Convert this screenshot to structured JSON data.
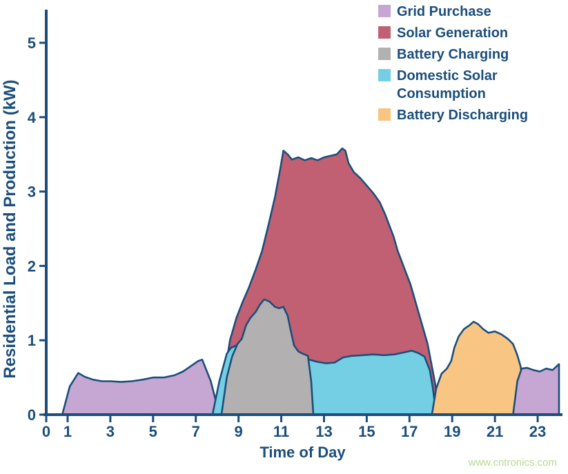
{
  "chart_data": {
    "type": "area",
    "title": "",
    "xlabel": "Time of Day",
    "ylabel": "Residential Load and Production (kW)",
    "x_unit": "hour",
    "y_unit": "kW",
    "xlim": [
      0,
      24
    ],
    "ylim": [
      0,
      5.5
    ],
    "x_ticks": [
      0,
      1,
      3,
      5,
      7,
      9,
      11,
      13,
      15,
      17,
      19,
      21,
      23
    ],
    "y_ticks": [
      0,
      1,
      2,
      3,
      4,
      5
    ],
    "grid": false,
    "legend_position": "top-right",
    "axis_color": "#1b4e7a",
    "text_color": "#1b4e7a",
    "legend": [
      {
        "label": "Grid Purchase",
        "color": "#c6a6d2"
      },
      {
        "label": "Solar Generation",
        "color": "#c06072"
      },
      {
        "label": "Battery Charging",
        "color": "#b2b0b1"
      },
      {
        "label": "Domestic Solar Consumption",
        "color": "#74cfe4"
      },
      {
        "label": "Battery Discharging",
        "color": "#f9c583"
      }
    ],
    "series": [
      {
        "id": "grid-purchase-morning",
        "name": "Grid Purchase",
        "color": "#c6a6d2",
        "points": [
          [
            0.75,
            0
          ],
          [
            1.1,
            0.38
          ],
          [
            1.5,
            0.56
          ],
          [
            1.8,
            0.51
          ],
          [
            2.2,
            0.47
          ],
          [
            2.6,
            0.45
          ],
          [
            3.0,
            0.45
          ],
          [
            3.5,
            0.44
          ],
          [
            4.0,
            0.45
          ],
          [
            4.5,
            0.47
          ],
          [
            5.0,
            0.5
          ],
          [
            5.5,
            0.5
          ],
          [
            6.0,
            0.53
          ],
          [
            6.4,
            0.58
          ],
          [
            6.8,
            0.66
          ],
          [
            7.1,
            0.72
          ],
          [
            7.3,
            0.74
          ],
          [
            7.7,
            0.45
          ],
          [
            8.1,
            0
          ]
        ]
      },
      {
        "id": "solar-generation",
        "name": "Solar Generation",
        "color": "#c06072",
        "points": [
          [
            8.1,
            0
          ],
          [
            8.35,
            0.55
          ],
          [
            8.6,
            1.0
          ],
          [
            8.9,
            1.3
          ],
          [
            9.2,
            1.52
          ],
          [
            9.5,
            1.72
          ],
          [
            9.8,
            1.95
          ],
          [
            10.1,
            2.2
          ],
          [
            10.4,
            2.55
          ],
          [
            10.7,
            2.92
          ],
          [
            10.95,
            3.3
          ],
          [
            11.1,
            3.55
          ],
          [
            11.3,
            3.5
          ],
          [
            11.5,
            3.43
          ],
          [
            11.8,
            3.46
          ],
          [
            12.1,
            3.42
          ],
          [
            12.4,
            3.45
          ],
          [
            12.7,
            3.42
          ],
          [
            13.0,
            3.46
          ],
          [
            13.3,
            3.48
          ],
          [
            13.6,
            3.5
          ],
          [
            13.85,
            3.58
          ],
          [
            14.0,
            3.55
          ],
          [
            14.15,
            3.38
          ],
          [
            14.4,
            3.26
          ],
          [
            14.7,
            3.18
          ],
          [
            15.0,
            3.08
          ],
          [
            15.3,
            2.98
          ],
          [
            15.6,
            2.86
          ],
          [
            15.85,
            2.7
          ],
          [
            16.05,
            2.55
          ],
          [
            16.25,
            2.4
          ],
          [
            16.45,
            2.2
          ],
          [
            16.65,
            2.05
          ],
          [
            16.85,
            1.9
          ],
          [
            17.05,
            1.75
          ],
          [
            17.25,
            1.55
          ],
          [
            17.45,
            1.35
          ],
          [
            17.65,
            1.15
          ],
          [
            17.85,
            0.95
          ],
          [
            18.0,
            0.72
          ],
          [
            18.15,
            0.5
          ],
          [
            18.3,
            0.25
          ],
          [
            18.4,
            0
          ]
        ]
      },
      {
        "id": "domestic-solar-consumption",
        "name": "Domestic Solar Consumption",
        "color": "#74cfe4",
        "points": [
          [
            7.78,
            0
          ],
          [
            8.1,
            0.45
          ],
          [
            8.45,
            0.82
          ],
          [
            8.65,
            0.9
          ],
          [
            8.9,
            0.93
          ],
          [
            9.2,
            0.9
          ],
          [
            9.6,
            0.87
          ],
          [
            10.0,
            0.85
          ],
          [
            10.5,
            0.83
          ],
          [
            11.0,
            0.82
          ],
          [
            11.5,
            0.8
          ],
          [
            11.9,
            0.77
          ],
          [
            12.3,
            0.74
          ],
          [
            12.7,
            0.71
          ],
          [
            13.1,
            0.69
          ],
          [
            13.5,
            0.7
          ],
          [
            13.9,
            0.77
          ],
          [
            14.3,
            0.79
          ],
          [
            14.8,
            0.8
          ],
          [
            15.3,
            0.81
          ],
          [
            15.8,
            0.8
          ],
          [
            16.3,
            0.81
          ],
          [
            16.8,
            0.84
          ],
          [
            17.1,
            0.86
          ],
          [
            17.4,
            0.83
          ],
          [
            17.7,
            0.78
          ],
          [
            17.95,
            0.6
          ],
          [
            18.1,
            0.35
          ],
          [
            18.25,
            0
          ]
        ]
      },
      {
        "id": "battery-charging",
        "name": "Battery Charging",
        "color": "#b2b0b1",
        "points": [
          [
            8.2,
            0
          ],
          [
            8.45,
            0.5
          ],
          [
            8.7,
            0.78
          ],
          [
            8.95,
            0.95
          ],
          [
            9.15,
            1.02
          ],
          [
            9.35,
            1.2
          ],
          [
            9.55,
            1.3
          ],
          [
            9.8,
            1.38
          ],
          [
            10.0,
            1.48
          ],
          [
            10.2,
            1.55
          ],
          [
            10.45,
            1.52
          ],
          [
            10.7,
            1.45
          ],
          [
            10.9,
            1.43
          ],
          [
            11.1,
            1.45
          ],
          [
            11.3,
            1.33
          ],
          [
            11.45,
            1.12
          ],
          [
            11.6,
            0.93
          ],
          [
            11.8,
            0.85
          ],
          [
            12.0,
            0.82
          ],
          [
            12.25,
            0.79
          ],
          [
            12.4,
            0.45
          ],
          [
            12.5,
            0
          ]
        ]
      },
      {
        "id": "battery-discharging",
        "name": "Battery Discharging",
        "color": "#f9c583",
        "points": [
          [
            18.05,
            0
          ],
          [
            18.25,
            0.35
          ],
          [
            18.5,
            0.55
          ],
          [
            18.75,
            0.62
          ],
          [
            18.95,
            0.72
          ],
          [
            19.1,
            0.9
          ],
          [
            19.3,
            1.05
          ],
          [
            19.55,
            1.15
          ],
          [
            19.8,
            1.2
          ],
          [
            20.0,
            1.25
          ],
          [
            20.2,
            1.22
          ],
          [
            20.45,
            1.15
          ],
          [
            20.7,
            1.1
          ],
          [
            21.0,
            1.12
          ],
          [
            21.3,
            1.08
          ],
          [
            21.6,
            1.02
          ],
          [
            21.85,
            0.95
          ],
          [
            22.05,
            0.8
          ],
          [
            22.2,
            0.65
          ],
          [
            22.35,
            0.35
          ],
          [
            22.45,
            0
          ]
        ]
      },
      {
        "id": "grid-purchase-evening",
        "name": "Grid Purchase",
        "color": "#c6a6d2",
        "points": [
          [
            21.85,
            0
          ],
          [
            22.05,
            0.45
          ],
          [
            22.25,
            0.62
          ],
          [
            22.5,
            0.63
          ],
          [
            22.8,
            0.6
          ],
          [
            23.1,
            0.58
          ],
          [
            23.4,
            0.62
          ],
          [
            23.7,
            0.6
          ],
          [
            24.0,
            0.68
          ],
          [
            24.0,
            0
          ]
        ]
      }
    ]
  },
  "watermark": {
    "text": "www.cntronics.com",
    "color": "#b7da8e"
  }
}
